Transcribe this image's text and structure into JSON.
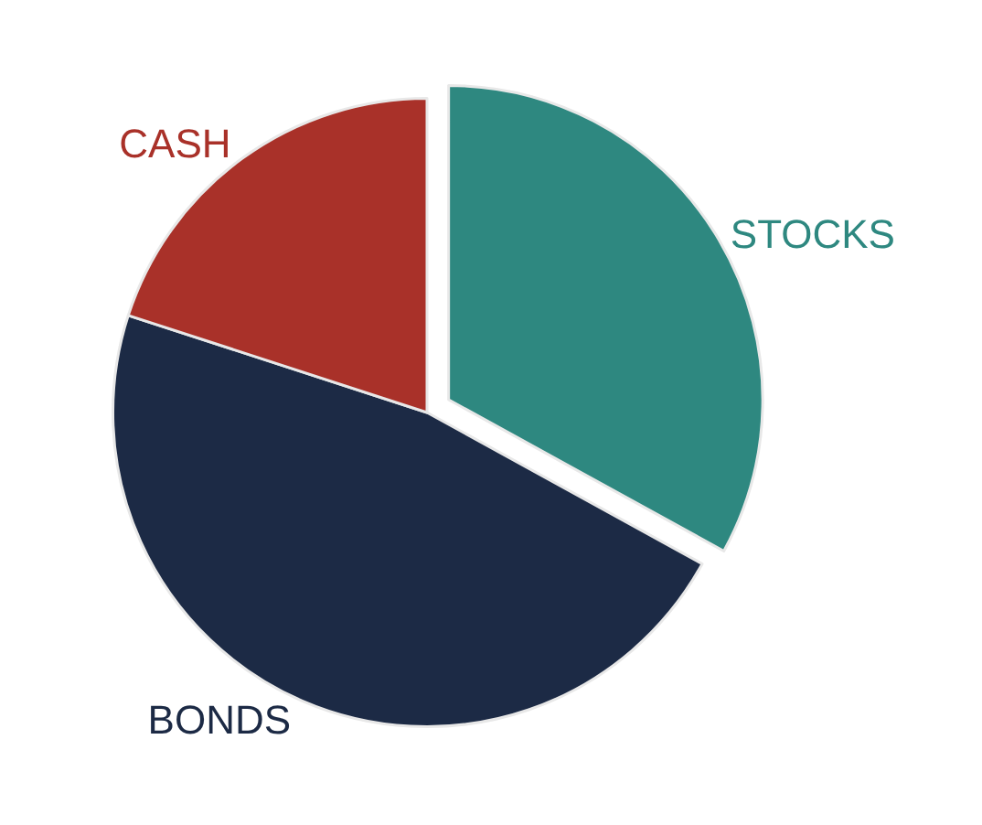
{
  "chart_data": {
    "type": "pie",
    "categories": [
      "STOCKS",
      "BONDS",
      "CASH"
    ],
    "values": [
      33,
      47,
      20
    ],
    "colors": [
      "#2e8880",
      "#1c2a45",
      "#a93129"
    ],
    "legend": false
  }
}
